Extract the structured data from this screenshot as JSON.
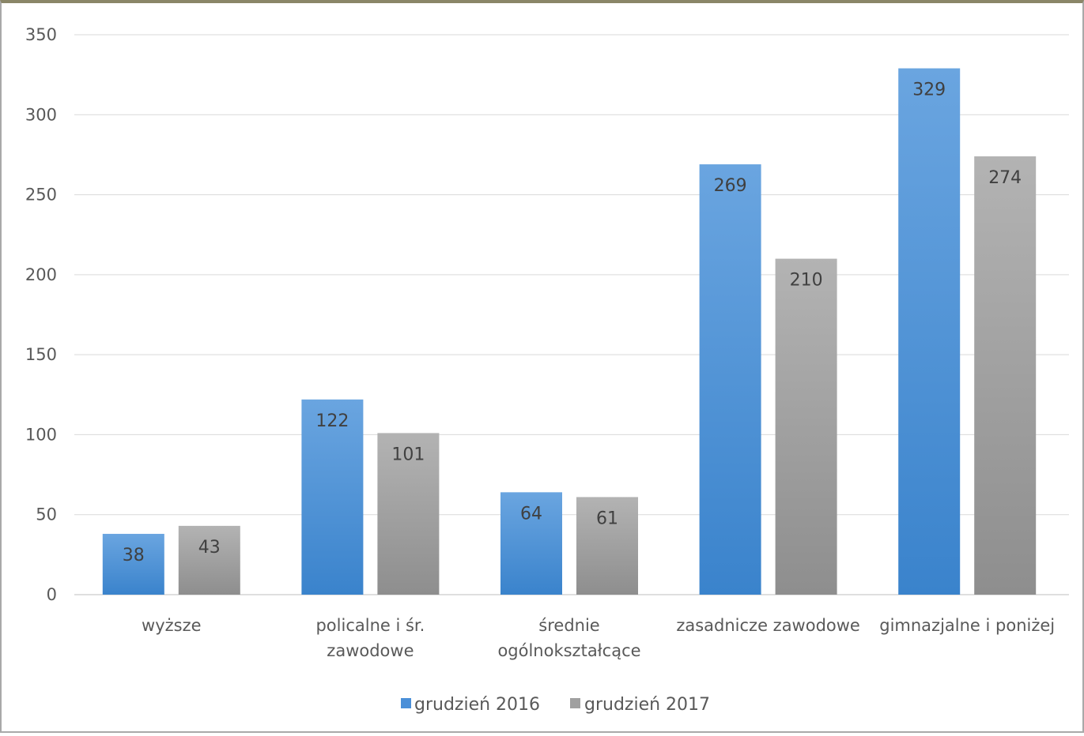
{
  "chart_data": {
    "type": "bar",
    "title": "",
    "xlabel": "",
    "ylabel": "",
    "ylim": [
      0,
      350
    ],
    "yticks": [
      0,
      50,
      100,
      150,
      200,
      250,
      300,
      350
    ],
    "grid": true,
    "legend_position": "bottom",
    "categories": [
      [
        "wyższe"
      ],
      [
        "policalne i śr.",
        "zawodowe"
      ],
      [
        "średnie",
        "ogólnokształcące"
      ],
      [
        "zasadnicze zawodowe"
      ],
      [
        "gimnazjalne i poniżej"
      ]
    ],
    "series": [
      {
        "name": "grudzień 2016",
        "values": [
          38,
          122,
          64,
          269,
          329
        ],
        "color": "#4a8fd8"
      },
      {
        "name": "grudzień 2017",
        "values": [
          43,
          101,
          61,
          210,
          274
        ],
        "color": "#a0a0a0"
      }
    ]
  }
}
